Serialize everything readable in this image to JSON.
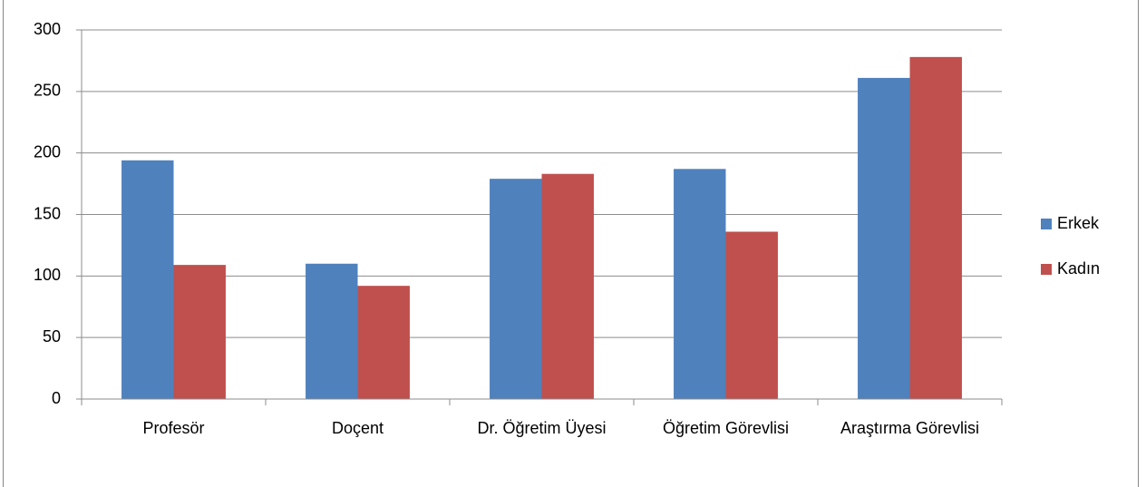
{
  "chart_data": {
    "type": "bar",
    "categories": [
      "Profesör",
      "Doçent",
      "Dr. Öğretim Üyesi",
      "Öğretim Görevlisi",
      "Araştırma Görevlisi"
    ],
    "series": [
      {
        "name": "Erkek",
        "color": "#4f81bd",
        "values": [
          194,
          110,
          179,
          187,
          261
        ]
      },
      {
        "name": "Kadın",
        "color": "#c0504d",
        "values": [
          109,
          92,
          183,
          136,
          278
        ]
      }
    ],
    "ylim": [
      0,
      300
    ],
    "yticks": [
      0,
      50,
      100,
      150,
      200,
      250,
      300
    ],
    "grid": true,
    "legend": "right"
  }
}
